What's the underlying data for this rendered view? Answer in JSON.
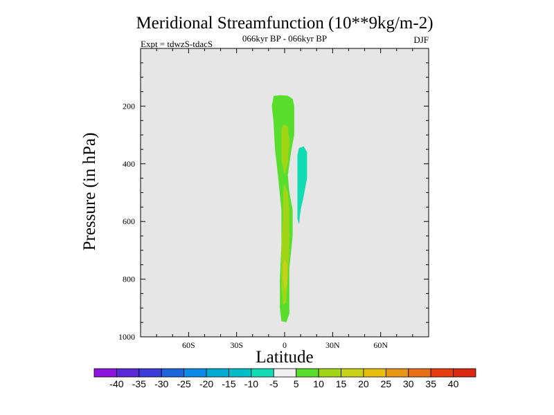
{
  "chart_data": {
    "type": "contour",
    "title": "Meridional Streamfunction (10**9kg/m-2)",
    "subtitle_center": "066kyr BP - 066kyr BP",
    "subtitle_left": "Expt = tdwzS-tdacS",
    "subtitle_right": "DJF",
    "xlabel": "Latitude",
    "ylabel": "Pressure (in hPa)",
    "xlim": [
      -90,
      90
    ],
    "ylim": [
      1000,
      0
    ],
    "background_color": "#e6e6e6",
    "x_ticks": [
      {
        "value": -60,
        "label": "60S"
      },
      {
        "value": -30,
        "label": "30S"
      },
      {
        "value": 0,
        "label": "0"
      },
      {
        "value": 30,
        "label": "30N"
      },
      {
        "value": 60,
        "label": "60N"
      }
    ],
    "y_ticks": [
      {
        "value": 200,
        "label": "200"
      },
      {
        "value": 400,
        "label": "400"
      },
      {
        "value": 600,
        "label": "600"
      },
      {
        "value": 800,
        "label": "800"
      },
      {
        "value": 1000,
        "label": "1000"
      }
    ],
    "regions": [
      {
        "name": "positive-cell-5-10",
        "level": 5,
        "color": "#5ade2d",
        "points": [
          [
            -7,
            165
          ],
          [
            -3,
            162
          ],
          [
            2,
            164
          ],
          [
            5,
            175
          ],
          [
            6,
            200
          ],
          [
            6,
            300
          ],
          [
            4,
            360
          ],
          [
            2,
            440
          ],
          [
            3,
            500
          ],
          [
            5,
            560
          ],
          [
            5,
            650
          ],
          [
            3,
            760
          ],
          [
            3,
            860
          ],
          [
            3,
            920
          ],
          [
            1,
            950
          ],
          [
            -2,
            945
          ],
          [
            -3,
            900
          ],
          [
            -3,
            800
          ],
          [
            -2,
            680
          ],
          [
            -2,
            560
          ],
          [
            -4,
            450
          ],
          [
            -6,
            350
          ],
          [
            -7,
            250
          ],
          [
            -8,
            200
          ],
          [
            -7,
            170
          ]
        ]
      },
      {
        "name": "positive-cell-10-15-upper",
        "level": 10,
        "color": "#a0d615",
        "points": [
          [
            -1,
            265
          ],
          [
            2,
            270
          ],
          [
            3,
            330
          ],
          [
            2,
            400
          ],
          [
            0,
            440
          ],
          [
            -2,
            390
          ],
          [
            -2,
            320
          ],
          [
            -2,
            280
          ]
        ]
      },
      {
        "name": "positive-cell-10-15-lower",
        "level": 10,
        "color": "#a0d615",
        "points": [
          [
            0,
            470
          ],
          [
            2,
            500
          ],
          [
            3,
            560
          ],
          [
            3,
            680
          ],
          [
            2,
            800
          ],
          [
            1,
            880
          ],
          [
            -1,
            890
          ],
          [
            -2,
            820
          ],
          [
            -2,
            680
          ],
          [
            -1,
            570
          ],
          [
            -1,
            500
          ]
        ]
      },
      {
        "name": "positive-cell-15-20-core",
        "level": 15,
        "color": "#c8d21a",
        "points": [
          [
            0,
            730
          ],
          [
            1.5,
            750
          ],
          [
            1.5,
            820
          ],
          [
            0,
            835
          ],
          [
            -1,
            800
          ],
          [
            -1,
            750
          ]
        ]
      },
      {
        "name": "negative-cell-minus5-minus10",
        "level": -10,
        "color": "#12dcb4",
        "points": [
          [
            9,
            345
          ],
          [
            12,
            340
          ],
          [
            14,
            360
          ],
          [
            14,
            420
          ],
          [
            14,
            450
          ],
          [
            13,
            480
          ],
          [
            12,
            510
          ],
          [
            10,
            560
          ],
          [
            9,
            610
          ],
          [
            8,
            590
          ],
          [
            8,
            520
          ],
          [
            8,
            460
          ],
          [
            8,
            400
          ],
          [
            8,
            370
          ]
        ]
      }
    ],
    "colorbar": {
      "labels": [
        "-40",
        "-35",
        "-30",
        "-25",
        "-20",
        "-15",
        "-10",
        "-5",
        "5",
        "10",
        "15",
        "20",
        "25",
        "30",
        "35",
        "40"
      ],
      "colors": [
        "#8c14dc",
        "#5a28d6",
        "#3c3cd8",
        "#1e64dc",
        "#0a8ce6",
        "#00aad2",
        "#00bec8",
        "#12dcb4",
        "#f0f0f0",
        "#5ade2d",
        "#a0d615",
        "#c8d21a",
        "#e6be10",
        "#e69614",
        "#e66e14",
        "#e63c10",
        "#dc2810"
      ]
    }
  }
}
